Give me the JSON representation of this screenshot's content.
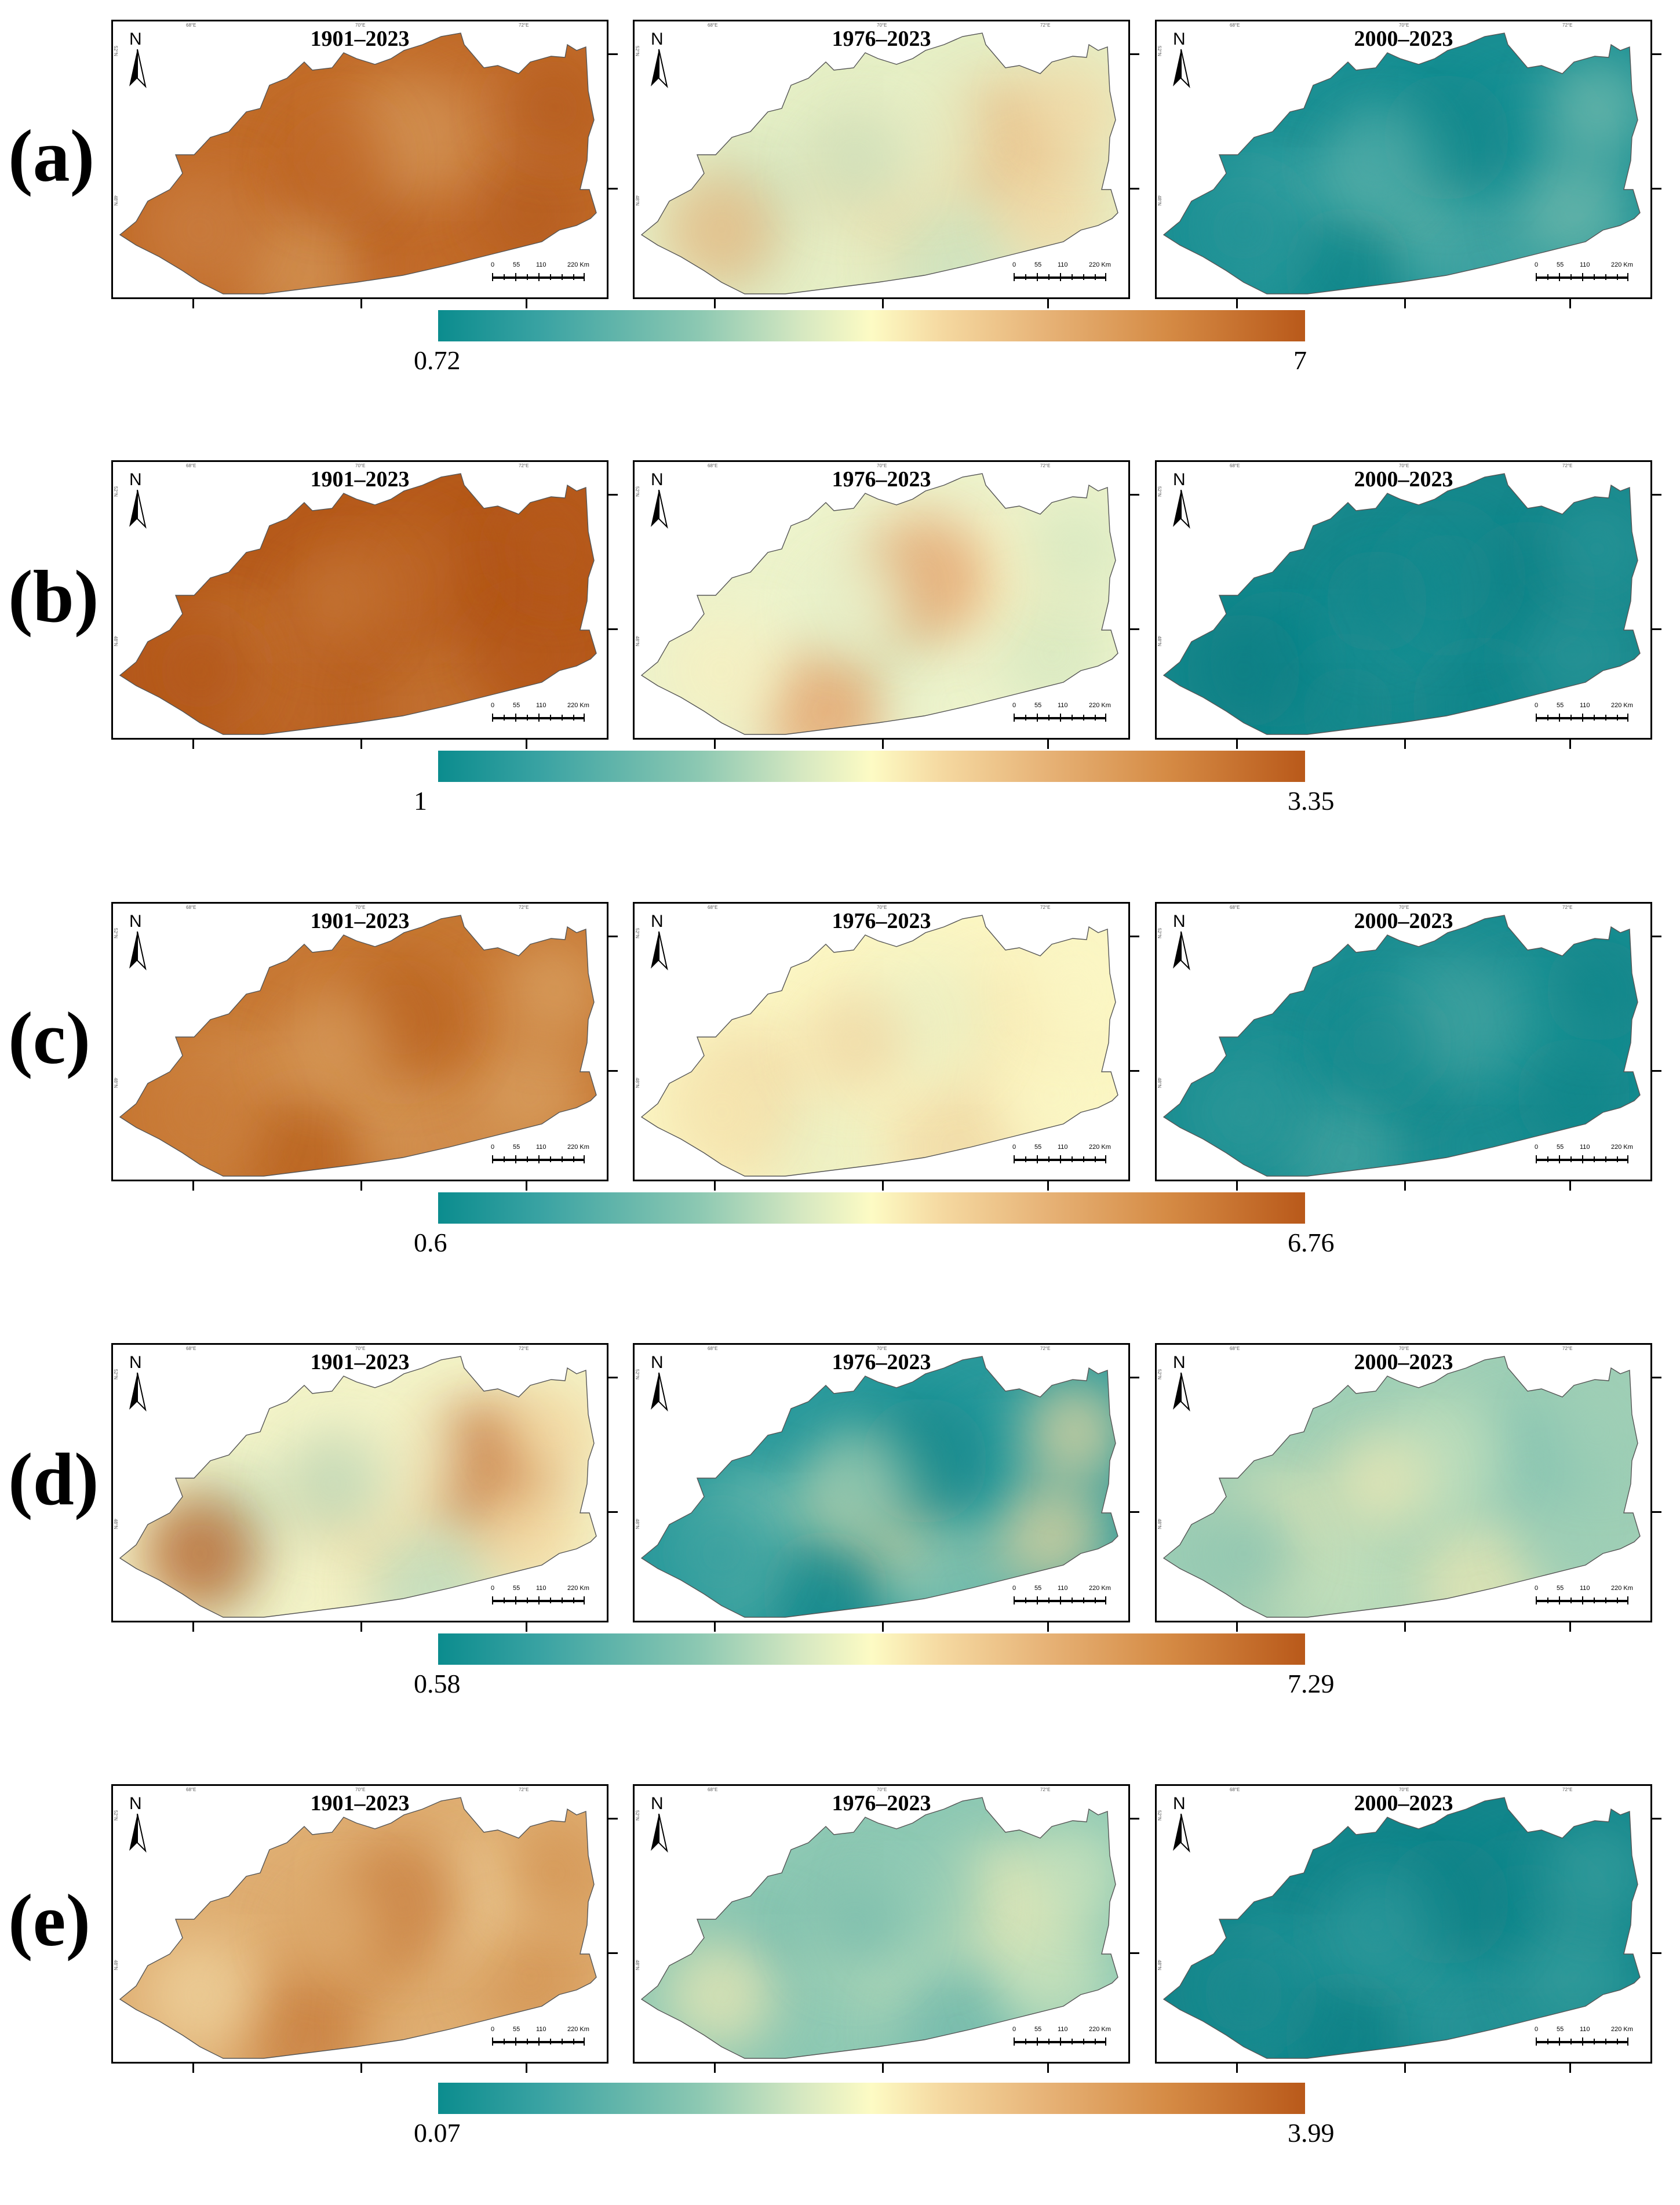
{
  "figure": {
    "rows": [
      {
        "label": "(a)",
        "panels": [
          {
            "title": "1901–2023",
            "palette": [
              "#c26c2a",
              "#b45a1c",
              "#cb8145",
              "#d69a5c"
            ]
          },
          {
            "title": "1976–2023",
            "palette": [
              "#e6efc6",
              "#c9e0bd",
              "#f2d8a4",
              "#e8b57c"
            ]
          },
          {
            "title": "2000–2023",
            "palette": [
              "#1a9094",
              "#0f8589",
              "#4aa8a6",
              "#7bbfb0"
            ]
          }
        ],
        "colorbar": {
          "min": "0.72",
          "max": "7"
        }
      },
      {
        "label": "(b)",
        "panels": [
          {
            "title": "1901–2023",
            "palette": [
              "#b65a1b",
              "#b05315",
              "#c06a2a",
              "#c67838"
            ]
          },
          {
            "title": "1976–2023",
            "palette": [
              "#edf3cc",
              "#d4e7c0",
              "#f7efc0",
              "#e39a62"
            ]
          },
          {
            "title": "2000–2023",
            "palette": [
              "#18898d",
              "#10858a",
              "#2a9598",
              "#0d7f84"
            ]
          }
        ],
        "colorbar": {
          "min": "1",
          "max": "3.35"
        }
      },
      {
        "label": "(c)",
        "panels": [
          {
            "title": "1901–2023",
            "palette": [
              "#c77834",
              "#b8601f",
              "#d49455",
              "#dba667"
            ]
          },
          {
            "title": "1976–2023",
            "palette": [
              "#fbf6c4",
              "#f7e7b1",
              "#e9efc4",
              "#eed4a0"
            ]
          },
          {
            "title": "2000–2023",
            "palette": [
              "#1b8e92",
              "#0f8488",
              "#2f9a9a",
              "#4aa6a2"
            ]
          }
        ],
        "colorbar": {
          "min": "0.6",
          "max": "6.76"
        }
      },
      {
        "label": "(d)",
        "panels": [
          {
            "title": "1901–2023",
            "palette": [
              "#f3f3c8",
              "#b7d8bb",
              "#f4d8a0",
              "#b9591a"
            ]
          },
          {
            "title": "1976–2023",
            "palette": [
              "#2a9a9c",
              "#0e8489",
              "#8ec9b4",
              "#f5dca2"
            ]
          },
          {
            "title": "2000–2023",
            "palette": [
              "#9fcfb6",
              "#7dbfb0",
              "#c7e2bd",
              "#f0e9b5"
            ]
          }
        ],
        "colorbar": {
          "min": "0.58",
          "max": "7.29"
        }
      },
      {
        "label": "(e)",
        "panels": [
          {
            "title": "1901–2023",
            "palette": [
              "#dfae72",
              "#d2914f",
              "#f0d6a2",
              "#c67a3a"
            ]
          },
          {
            "title": "1976–2023",
            "palette": [
              "#8ec9b4",
              "#6fb8ab",
              "#cfe5bd",
              "#f8eeb8"
            ]
          },
          {
            "title": "2000–2023",
            "palette": [
              "#14878c",
              "#0c8186",
              "#2b969a",
              "#3aa09f"
            ]
          }
        ],
        "colorbar": {
          "min": "0.07",
          "max": "3.99"
        }
      }
    ],
    "north_arrow": "N",
    "scale_labels": [
      "0",
      "55",
      "110",
      "220 Km"
    ],
    "coord_labels": {
      "lon1": "68°E",
      "lon2": "70°E",
      "lon3": "72°E",
      "lat1": "52°N",
      "lat2": "48°N"
    }
  }
}
